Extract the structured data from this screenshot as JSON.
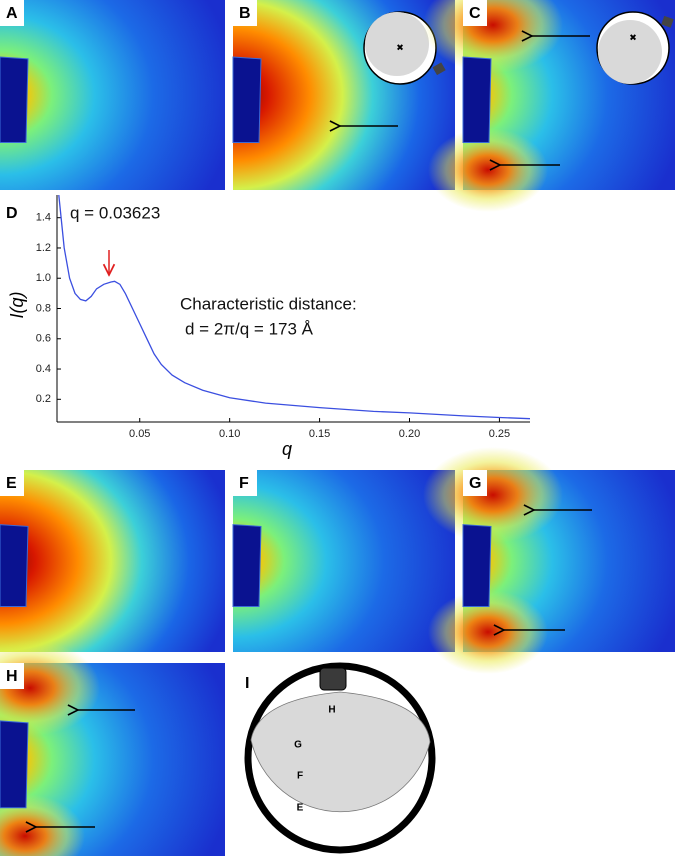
{
  "panel_labels": [
    "A",
    "B",
    "C",
    "D",
    "E",
    "F",
    "G",
    "H",
    "I"
  ],
  "diagram_i": {
    "labels": [
      "H",
      "G",
      "F",
      "E"
    ]
  },
  "chart_data": {
    "type": "line",
    "x_label": "q",
    "y_label": "I(q)",
    "annotations": [
      "q = 0.03623",
      "Characteristic distance:",
      "d = 2π/q = 173 Å"
    ],
    "x": [
      0.005,
      0.008,
      0.011,
      0.014,
      0.017,
      0.02,
      0.023,
      0.026,
      0.03,
      0.034,
      0.036,
      0.039,
      0.042,
      0.046,
      0.05,
      0.054,
      0.058,
      0.062,
      0.068,
      0.075,
      0.085,
      0.1,
      0.12,
      0.15,
      0.18,
      0.2,
      0.23,
      0.25,
      0.267
    ],
    "series": [
      {
        "name": "I(q)",
        "color": "#3b4fe0",
        "values": [
          1.55,
          1.2,
          1.0,
          0.9,
          0.86,
          0.85,
          0.88,
          0.93,
          0.96,
          0.975,
          0.98,
          0.96,
          0.9,
          0.8,
          0.7,
          0.6,
          0.5,
          0.43,
          0.36,
          0.31,
          0.26,
          0.21,
          0.175,
          0.145,
          0.12,
          0.11,
          0.09,
          0.08,
          0.072
        ]
      }
    ],
    "xlim": [
      0.004,
      0.267
    ],
    "ylim": [
      0.05,
      1.55
    ],
    "xticks": [
      {
        "value": 0.05,
        "label": "0.05"
      },
      {
        "value": 0.1,
        "label": "0.10"
      },
      {
        "value": 0.15,
        "label": "0.15"
      },
      {
        "value": 0.2,
        "label": "0.20"
      },
      {
        "value": 0.25,
        "label": "0.25"
      }
    ],
    "yticks": [
      0.2,
      0.4,
      0.6,
      0.8,
      {
        "value": 1.0,
        "label": "1.0"
      },
      1.2,
      1.4
    ]
  }
}
